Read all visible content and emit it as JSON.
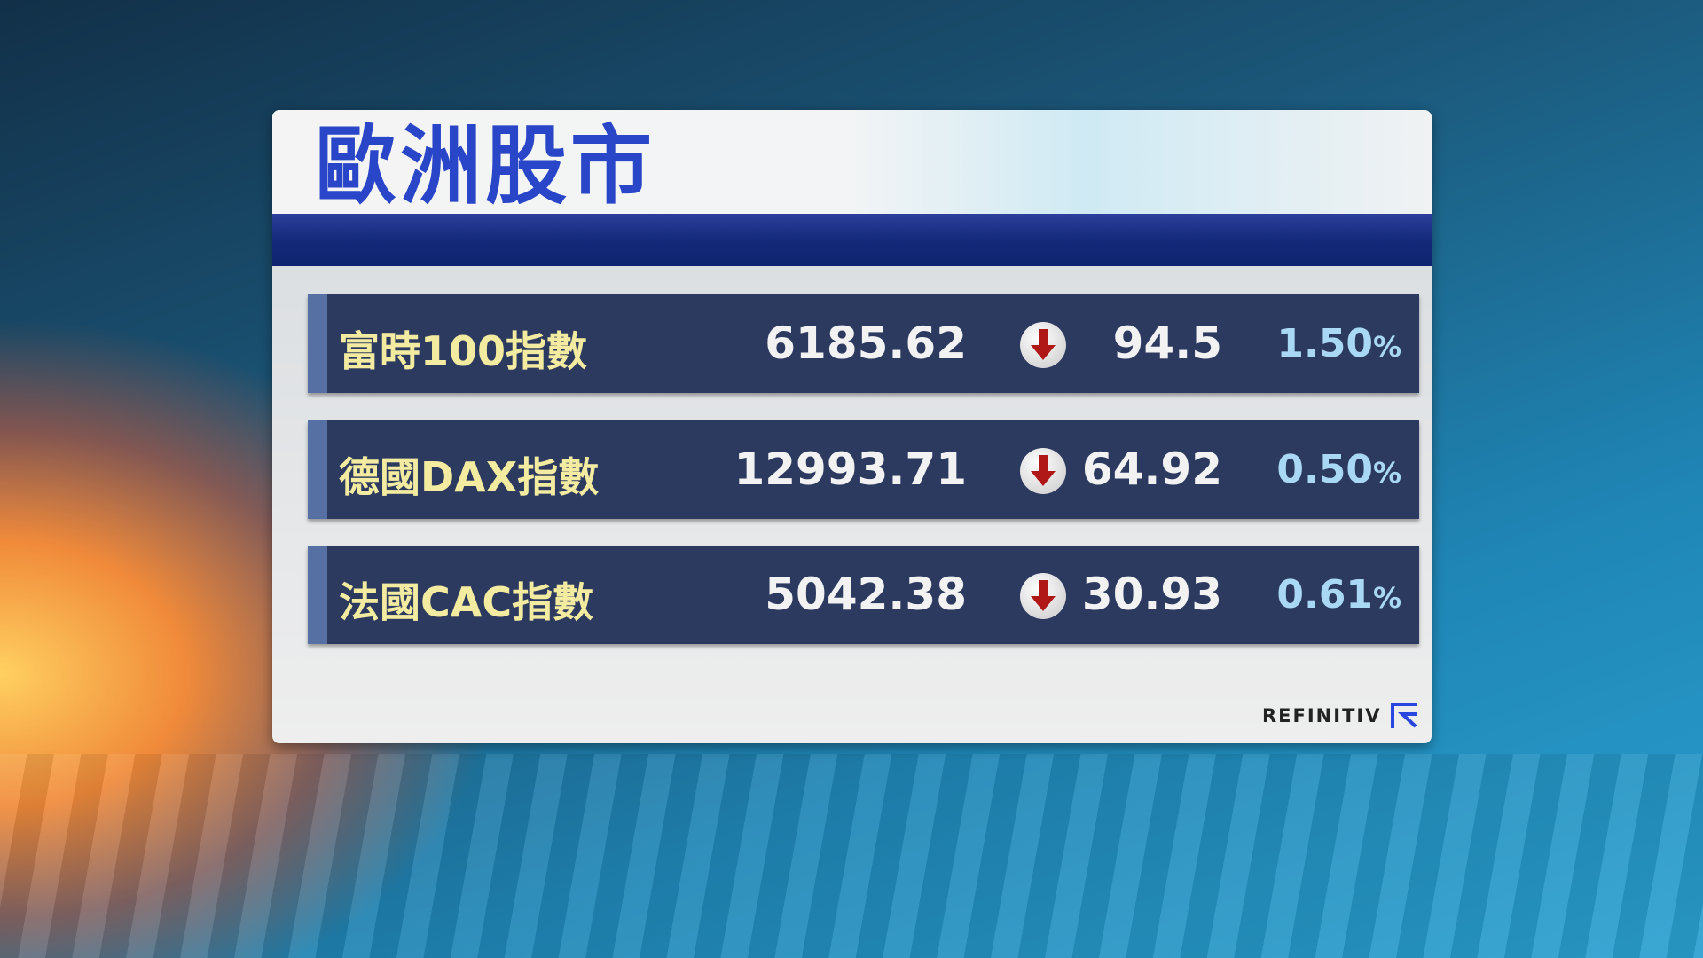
{
  "title": "歐洲股市",
  "rows": [
    {
      "name": "富時100指數",
      "value": "6185.62",
      "direction": "down",
      "change": "94.5",
      "percent": "1.50",
      "pct_sign": "%"
    },
    {
      "name": "德國DAX指數",
      "value": "12993.71",
      "direction": "down",
      "change": "64.92",
      "percent": "0.50",
      "pct_sign": "%"
    },
    {
      "name": "法國CAC指數",
      "value": "5042.38",
      "direction": "down",
      "change": "30.93",
      "percent": "0.61",
      "pct_sign": "%"
    }
  ],
  "logo": "REFINITIV",
  "colors": {
    "title": "#2a46c8",
    "row_bg": "#2d3a60",
    "name": "#f3eca0",
    "percent": "#a8d8f4",
    "down_arrow": "#b01818"
  }
}
